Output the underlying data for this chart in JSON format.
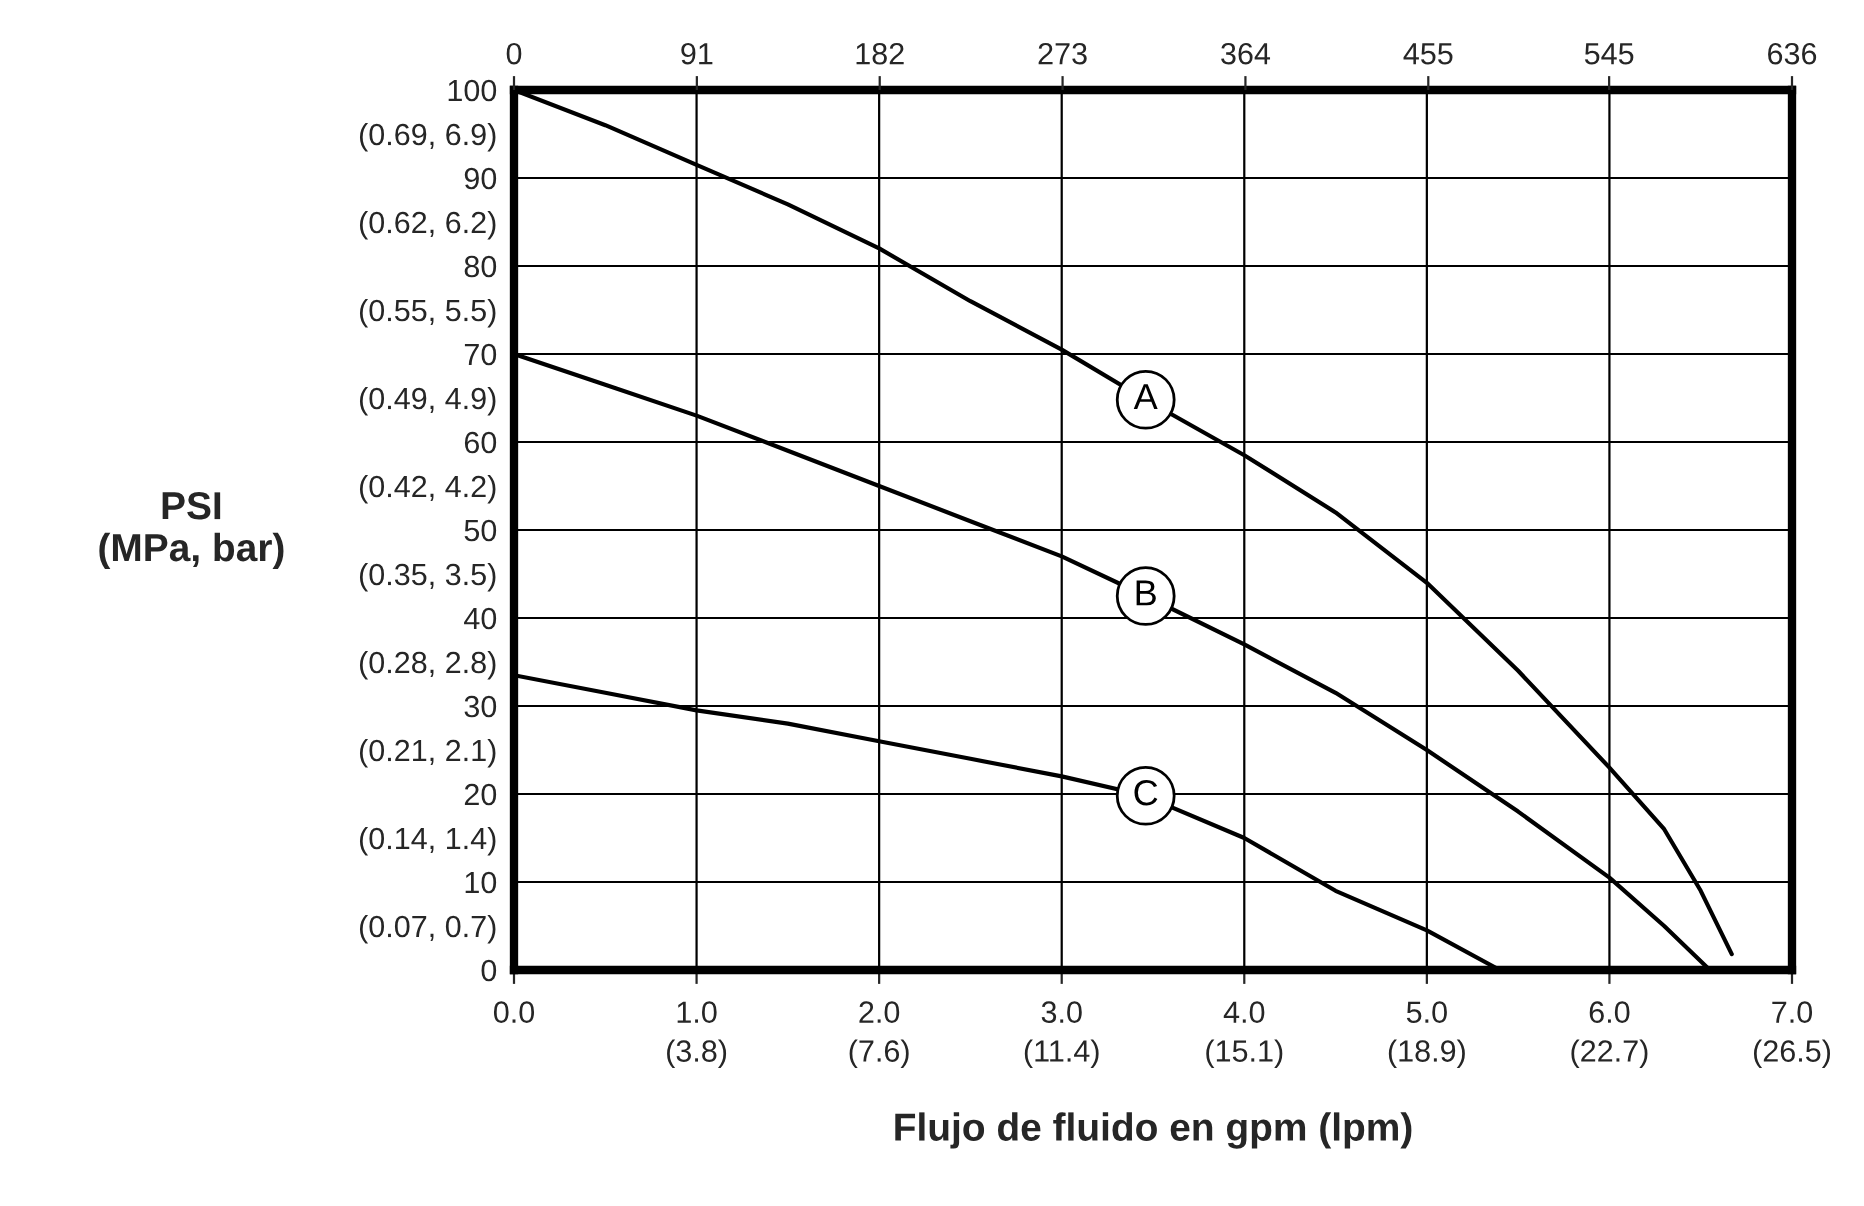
{
  "chart_data": {
    "type": "line",
    "xlabel": "Flujo de fluido en gpm (lpm)",
    "ylabel": "PSI\n(MPa, bar)",
    "xlim": [
      0,
      7
    ],
    "ylim": [
      0,
      100
    ],
    "xticks": [
      {
        "value": 0,
        "label": "0.0"
      },
      {
        "value": 1,
        "label": "1.0"
      },
      {
        "value": 2,
        "label": "2.0"
      },
      {
        "value": 3,
        "label": "3.0"
      },
      {
        "value": 4,
        "label": "4.0"
      },
      {
        "value": 5,
        "label": "5.0"
      },
      {
        "value": 6,
        "label": "6.0"
      },
      {
        "value": 7,
        "label": "7.0"
      }
    ],
    "x2lim": [
      0,
      636
    ],
    "x2ticks": [
      0,
      91,
      182,
      273,
      364,
      455,
      545,
      636
    ],
    "yticks": [
      0,
      {
        "value": 5,
        "label": "(0.07, 0.7)"
      },
      10,
      {
        "value": 15,
        "label": "(0.14, 1.4)"
      },
      20,
      {
        "value": 25,
        "label": "(0.21, 2.1)"
      },
      30,
      {
        "value": 35,
        "label": "(0.28, 2.8)"
      },
      40,
      {
        "value": 45,
        "label": "(0.35, 3.5)"
      },
      50,
      {
        "value": 55,
        "label": "(0.42, 4.2)"
      },
      60,
      {
        "value": 65,
        "label": "(0.49, 4.9)"
      },
      70,
      {
        "value": 75,
        "label": "(0.55, 5.5)"
      },
      80,
      {
        "value": 85,
        "label": "(0.62, 6.2)"
      },
      90,
      {
        "value": 95,
        "label": "(0.69, 6.9)"
      },
      100
    ],
    "grid": true,
    "legend": false,
    "marker": "none",
    "line_style": "solid",
    "series": [
      {
        "name": "A",
        "color": "#000000",
        "x": [
          0,
          0.5,
          1,
          1.5,
          2,
          2.5,
          3,
          3.46,
          4,
          4.5,
          5,
          5.5,
          6,
          6.3,
          6.5,
          6.67
        ],
        "values": [
          100,
          96,
          91.5,
          87,
          82,
          76,
          70.5,
          64.8,
          58.5,
          52,
          44,
          34,
          23,
          16,
          9,
          1.8
        ]
      },
      {
        "name": "B",
        "color": "#000000",
        "x": [
          0,
          0.5,
          1,
          1.5,
          2,
          2.5,
          3,
          3.46,
          4,
          4.5,
          5,
          5.5,
          6,
          6.3,
          6.55
        ],
        "values": [
          70,
          66.5,
          63,
          59,
          55,
          51,
          47,
          42.5,
          37,
          31.5,
          25,
          18,
          10.5,
          5,
          0
        ]
      },
      {
        "name": "C",
        "color": "#000000",
        "x": [
          0,
          0.5,
          1,
          1.5,
          2,
          2.5,
          3,
          3.46,
          3.6,
          4,
          4.5,
          5,
          5.4
        ],
        "values": [
          33.5,
          31.5,
          29.5,
          28,
          26,
          24,
          22,
          19.8,
          18.5,
          15,
          9,
          4.5,
          0
        ]
      }
    ],
    "annotations": [
      "(3.8)",
      "(7.6)",
      "(11.4)",
      "(15.1)",
      "(18.9)",
      "(22.7)",
      "(26.5)"
    ]
  }
}
